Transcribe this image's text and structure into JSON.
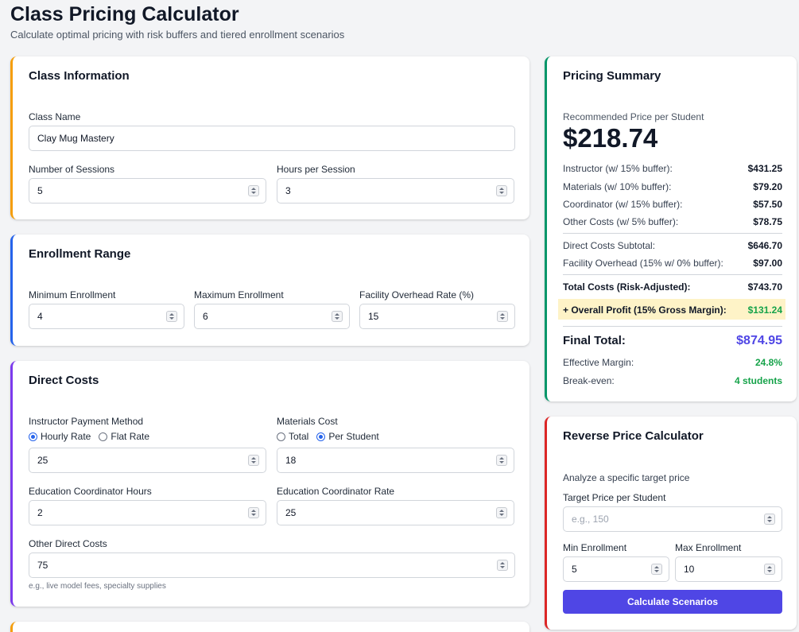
{
  "header": {
    "title": "Class Pricing Calculator",
    "subtitle": "Calculate optimal pricing with risk buffers and tiered enrollment scenarios"
  },
  "class_info": {
    "title": "Class Information",
    "class_name_label": "Class Name",
    "class_name_value": "Clay Mug Mastery",
    "sessions_label": "Number of Sessions",
    "sessions_value": "5",
    "hours_label": "Hours per Session",
    "hours_value": "3",
    "accent": "#f59e0b"
  },
  "enrollment": {
    "title": "Enrollment Range",
    "min_label": "Minimum Enrollment",
    "min_value": "4",
    "max_label": "Maximum Enrollment",
    "max_value": "6",
    "overhead_label": "Facility Overhead Rate (%)",
    "overhead_value": "15",
    "accent": "#2563eb"
  },
  "direct_costs": {
    "title": "Direct Costs",
    "instructor_label": "Instructor Payment Method",
    "instructor_options": [
      "Hourly Rate",
      "Flat Rate"
    ],
    "instructor_selected": "Hourly Rate",
    "instructor_value": "25",
    "materials_label": "Materials Cost",
    "materials_options": [
      "Total",
      "Per Student"
    ],
    "materials_selected": "Per Student",
    "materials_value": "18",
    "coord_hours_label": "Education Coordinator Hours",
    "coord_hours_value": "2",
    "coord_rate_label": "Education Coordinator Rate",
    "coord_rate_value": "25",
    "other_label": "Other Direct Costs",
    "other_value": "75",
    "other_hint": "e.g., live model fees, specialty supplies",
    "accent": "#7c3aed"
  },
  "summary": {
    "title": "Pricing Summary",
    "rec_label": "Recommended Price per Student",
    "rec_price": "$218.74",
    "rows": [
      {
        "k": "Instructor (w/ 15% buffer):",
        "v": "$431.25"
      },
      {
        "k": "Materials (w/ 10% buffer):",
        "v": "$79.20"
      },
      {
        "k": "Coordinator (w/ 15% buffer):",
        "v": "$57.50"
      },
      {
        "k": "Other Costs (w/ 5% buffer):",
        "v": "$78.75"
      }
    ],
    "subtotal_label": "Direct Costs Subtotal:",
    "subtotal_value": "$646.70",
    "facility_label": "Facility Overhead (15% w/ 0% buffer):",
    "facility_value": "$97.00",
    "total_label": "Total Costs (Risk-Adjusted):",
    "total_value": "$743.70",
    "profit_label": "+ Overall Profit (15% Gross Margin):",
    "profit_value": "$131.24",
    "final_label": "Final Total:",
    "final_value": "$874.95",
    "margin_label": "Effective Margin:",
    "margin_value": "24.8%",
    "breakeven_label": "Break-even:",
    "breakeven_value": "4 students",
    "accent": "#059669",
    "final_color": "#4f46e5",
    "green": "#16a34a"
  },
  "reverse": {
    "title": "Reverse Price Calculator",
    "desc": "Analyze a specific target price",
    "target_label": "Target Price per Student",
    "target_placeholder": "e.g., 150",
    "min_label": "Min Enrollment",
    "min_value": "5",
    "max_label": "Max Enrollment",
    "max_value": "10",
    "button_label": "Calculate Scenarios",
    "accent": "#dc2626"
  }
}
